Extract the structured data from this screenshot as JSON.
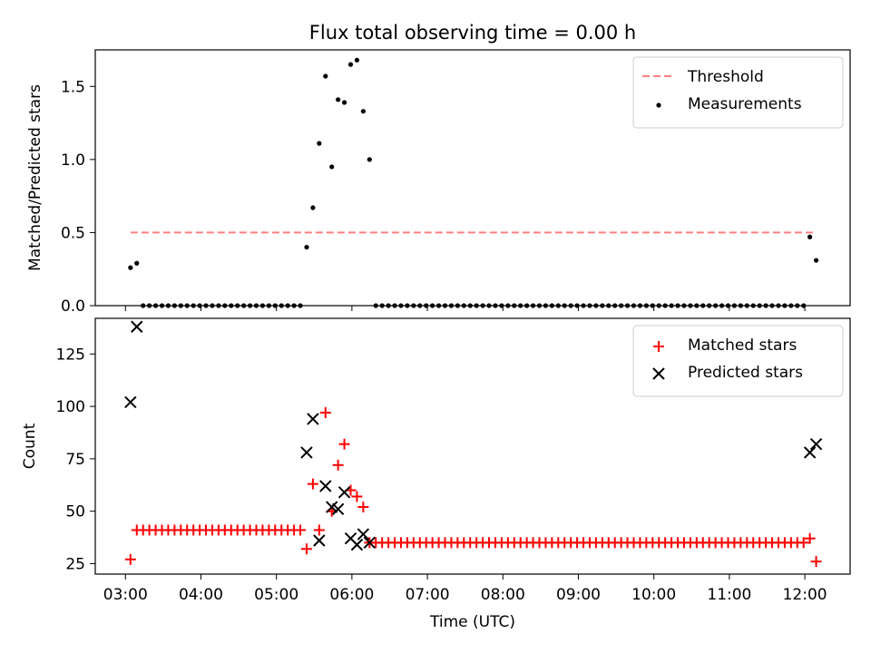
{
  "chart_data": [
    {
      "type": "scatter",
      "title": "Flux total observing time = 0.00 h",
      "xlabel": "",
      "ylabel": "Matched/Predicted stars",
      "ylim": [
        0,
        1.75
      ],
      "yticks": [
        0.0,
        0.5,
        1.0,
        1.5
      ],
      "ytick_labels": [
        "0.0",
        "0.5",
        "1.0",
        "1.5"
      ],
      "xlim": [
        "02:36",
        "12:36"
      ],
      "xticks": [
        "03:00",
        "04:00",
        "05:00",
        "06:00",
        "07:00",
        "08:00",
        "09:00",
        "10:00",
        "11:00",
        "12:00"
      ],
      "grid": false,
      "legend_position": "upper right",
      "series": [
        {
          "name": "Threshold",
          "kind": "dashed-line",
          "color": "#ff7f7f",
          "x": [
            "03:04",
            "12:09"
          ],
          "y": [
            0.5,
            0.5
          ]
        },
        {
          "name": "Measurements",
          "kind": "points",
          "color": "#000000",
          "x": [
            "03:04",
            "03:09",
            "05:24",
            "05:29",
            "05:34",
            "05:39",
            "05:44",
            "05:49",
            "05:54",
            "05:59",
            "06:04",
            "06:09",
            "06:14",
            "12:04",
            "12:09"
          ],
          "y": [
            0.26,
            0.29,
            0.4,
            0.67,
            1.11,
            1.57,
            0.95,
            1.41,
            1.39,
            1.65,
            1.68,
            1.33,
            1.0,
            0.47,
            0.31
          ],
          "zero_ranges": [
            [
              "03:14",
              "05:19",
              5
            ],
            [
              "06:19",
              "11:59",
              5
            ]
          ]
        }
      ]
    },
    {
      "type": "scatter",
      "xlabel": "Time (UTC)",
      "ylabel": "Count",
      "ylim": [
        20,
        142
      ],
      "yticks": [
        25,
        50,
        75,
        100,
        125
      ],
      "ytick_labels": [
        "25",
        "50",
        "75",
        "100",
        "125"
      ],
      "xlim": [
        "02:36",
        "12:36"
      ],
      "xticks": [
        "03:00",
        "04:00",
        "05:00",
        "06:00",
        "07:00",
        "08:00",
        "09:00",
        "10:00",
        "11:00",
        "12:00"
      ],
      "grid": false,
      "legend_position": "upper right",
      "series": [
        {
          "name": "Matched stars",
          "kind": "plus",
          "color": "#ff0000",
          "x": [
            "03:04",
            "05:24",
            "05:29",
            "05:34",
            "05:39",
            "05:44",
            "05:49",
            "05:54",
            "05:59",
            "06:04",
            "06:09",
            "06:14",
            "12:04",
            "12:09"
          ],
          "y": [
            27,
            32,
            63,
            41,
            97,
            50,
            72,
            82,
            60,
            57,
            52,
            35,
            37,
            26
          ],
          "constant_ranges": [
            [
              "03:09",
              "05:19",
              5,
              41
            ],
            [
              "06:19",
              "11:59",
              5,
              35
            ]
          ]
        },
        {
          "name": "Predicted stars",
          "kind": "x",
          "color": "#000000",
          "x": [
            "03:04",
            "03:09",
            "05:24",
            "05:29",
            "05:34",
            "05:39",
            "05:44",
            "05:49",
            "05:54",
            "05:59",
            "06:04",
            "06:09",
            "06:14",
            "12:04",
            "12:09"
          ],
          "y": [
            102,
            138,
            78,
            94,
            36,
            62,
            52,
            51,
            59,
            37,
            34,
            39,
            35,
            78,
            82
          ]
        }
      ]
    }
  ]
}
